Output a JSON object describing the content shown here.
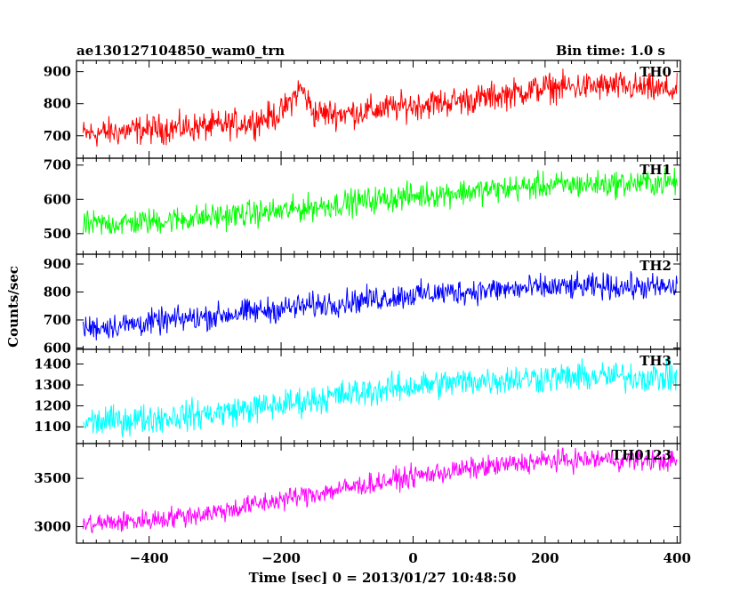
{
  "header": {
    "title": "ae130127104850_wam0_trn",
    "bin_time": "Bin time: 1.0 s"
  },
  "chart_data": {
    "type": "line",
    "title": "ae130127104850_wam0_trn",
    "subtitle": "Bin time: 1.0 s",
    "xlabel": "Time [sec] 0 = 2013/01/27 10:48:50",
    "ylabel": "Counts/sec",
    "xlim": [
      -510,
      405
    ],
    "data_x_range": [
      -500,
      400
    ],
    "x_ticks": [
      -400,
      -200,
      0,
      200,
      400
    ],
    "x_tick_labels": [
      "−400",
      "−200",
      "0",
      "200",
      "400"
    ],
    "panels": [
      {
        "name": "TH0",
        "color": "#ff0000",
        "ylim": [
          630,
          935
        ],
        "y_ticks": [
          700,
          800,
          900
        ],
        "y_tick_labels": [
          "700",
          "800",
          "900"
        ],
        "trend": [
          [
            -500,
            705
          ],
          [
            -400,
            720
          ],
          [
            -300,
            730
          ],
          [
            -240,
            745
          ],
          [
            -200,
            770
          ],
          [
            -170,
            850
          ],
          [
            -150,
            770
          ],
          [
            -100,
            770
          ],
          [
            0,
            795
          ],
          [
            100,
            815
          ],
          [
            200,
            850
          ],
          [
            300,
            855
          ],
          [
            400,
            840
          ]
        ],
        "noise_amplitude": 45
      },
      {
        "name": "TH1",
        "color": "#00ff00",
        "ylim": [
          440,
          720
        ],
        "y_ticks": [
          500,
          600,
          700
        ],
        "y_tick_labels": [
          "500",
          "600",
          "700"
        ],
        "trend": [
          [
            -500,
            525
          ],
          [
            -400,
            535
          ],
          [
            -300,
            550
          ],
          [
            -200,
            565
          ],
          [
            -100,
            590
          ],
          [
            0,
            610
          ],
          [
            100,
            625
          ],
          [
            200,
            640
          ],
          [
            300,
            645
          ],
          [
            400,
            650
          ]
        ],
        "noise_amplitude": 38
      },
      {
        "name": "TH2",
        "color": "#0000ff",
        "ylim": [
          595,
          935
        ],
        "y_ticks": [
          600,
          700,
          800,
          900
        ],
        "y_tick_labels": [
          "600",
          "700",
          "800",
          "900"
        ],
        "trend": [
          [
            -500,
            670
          ],
          [
            -400,
            690
          ],
          [
            -300,
            715
          ],
          [
            -200,
            740
          ],
          [
            -100,
            765
          ],
          [
            0,
            790
          ],
          [
            100,
            805
          ],
          [
            200,
            815
          ],
          [
            300,
            820
          ],
          [
            400,
            815
          ]
        ],
        "noise_amplitude": 45
      },
      {
        "name": "TH3",
        "color": "#00ffff",
        "ylim": [
          1020,
          1470
        ],
        "y_ticks": [
          1100,
          1200,
          1300,
          1400
        ],
        "y_tick_labels": [
          "1100",
          "1200",
          "1300",
          "1400"
        ],
        "trend": [
          [
            -500,
            1120
          ],
          [
            -400,
            1140
          ],
          [
            -300,
            1165
          ],
          [
            -200,
            1205
          ],
          [
            -100,
            1255
          ],
          [
            0,
            1295
          ],
          [
            100,
            1320
          ],
          [
            200,
            1335
          ],
          [
            300,
            1340
          ],
          [
            400,
            1335
          ]
        ],
        "noise_amplitude": 70
      },
      {
        "name": "TH0123",
        "color": "#ff00ff",
        "ylim": [
          2830,
          3860
        ],
        "y_ticks": [
          3000,
          3500
        ],
        "y_tick_labels": [
          "3000",
          "3500"
        ],
        "trend": [
          [
            -500,
            3020
          ],
          [
            -400,
            3070
          ],
          [
            -300,
            3150
          ],
          [
            -200,
            3280
          ],
          [
            -100,
            3400
          ],
          [
            0,
            3520
          ],
          [
            100,
            3610
          ],
          [
            200,
            3680
          ],
          [
            300,
            3700
          ],
          [
            400,
            3680
          ]
        ],
        "noise_amplitude": 110
      }
    ]
  }
}
